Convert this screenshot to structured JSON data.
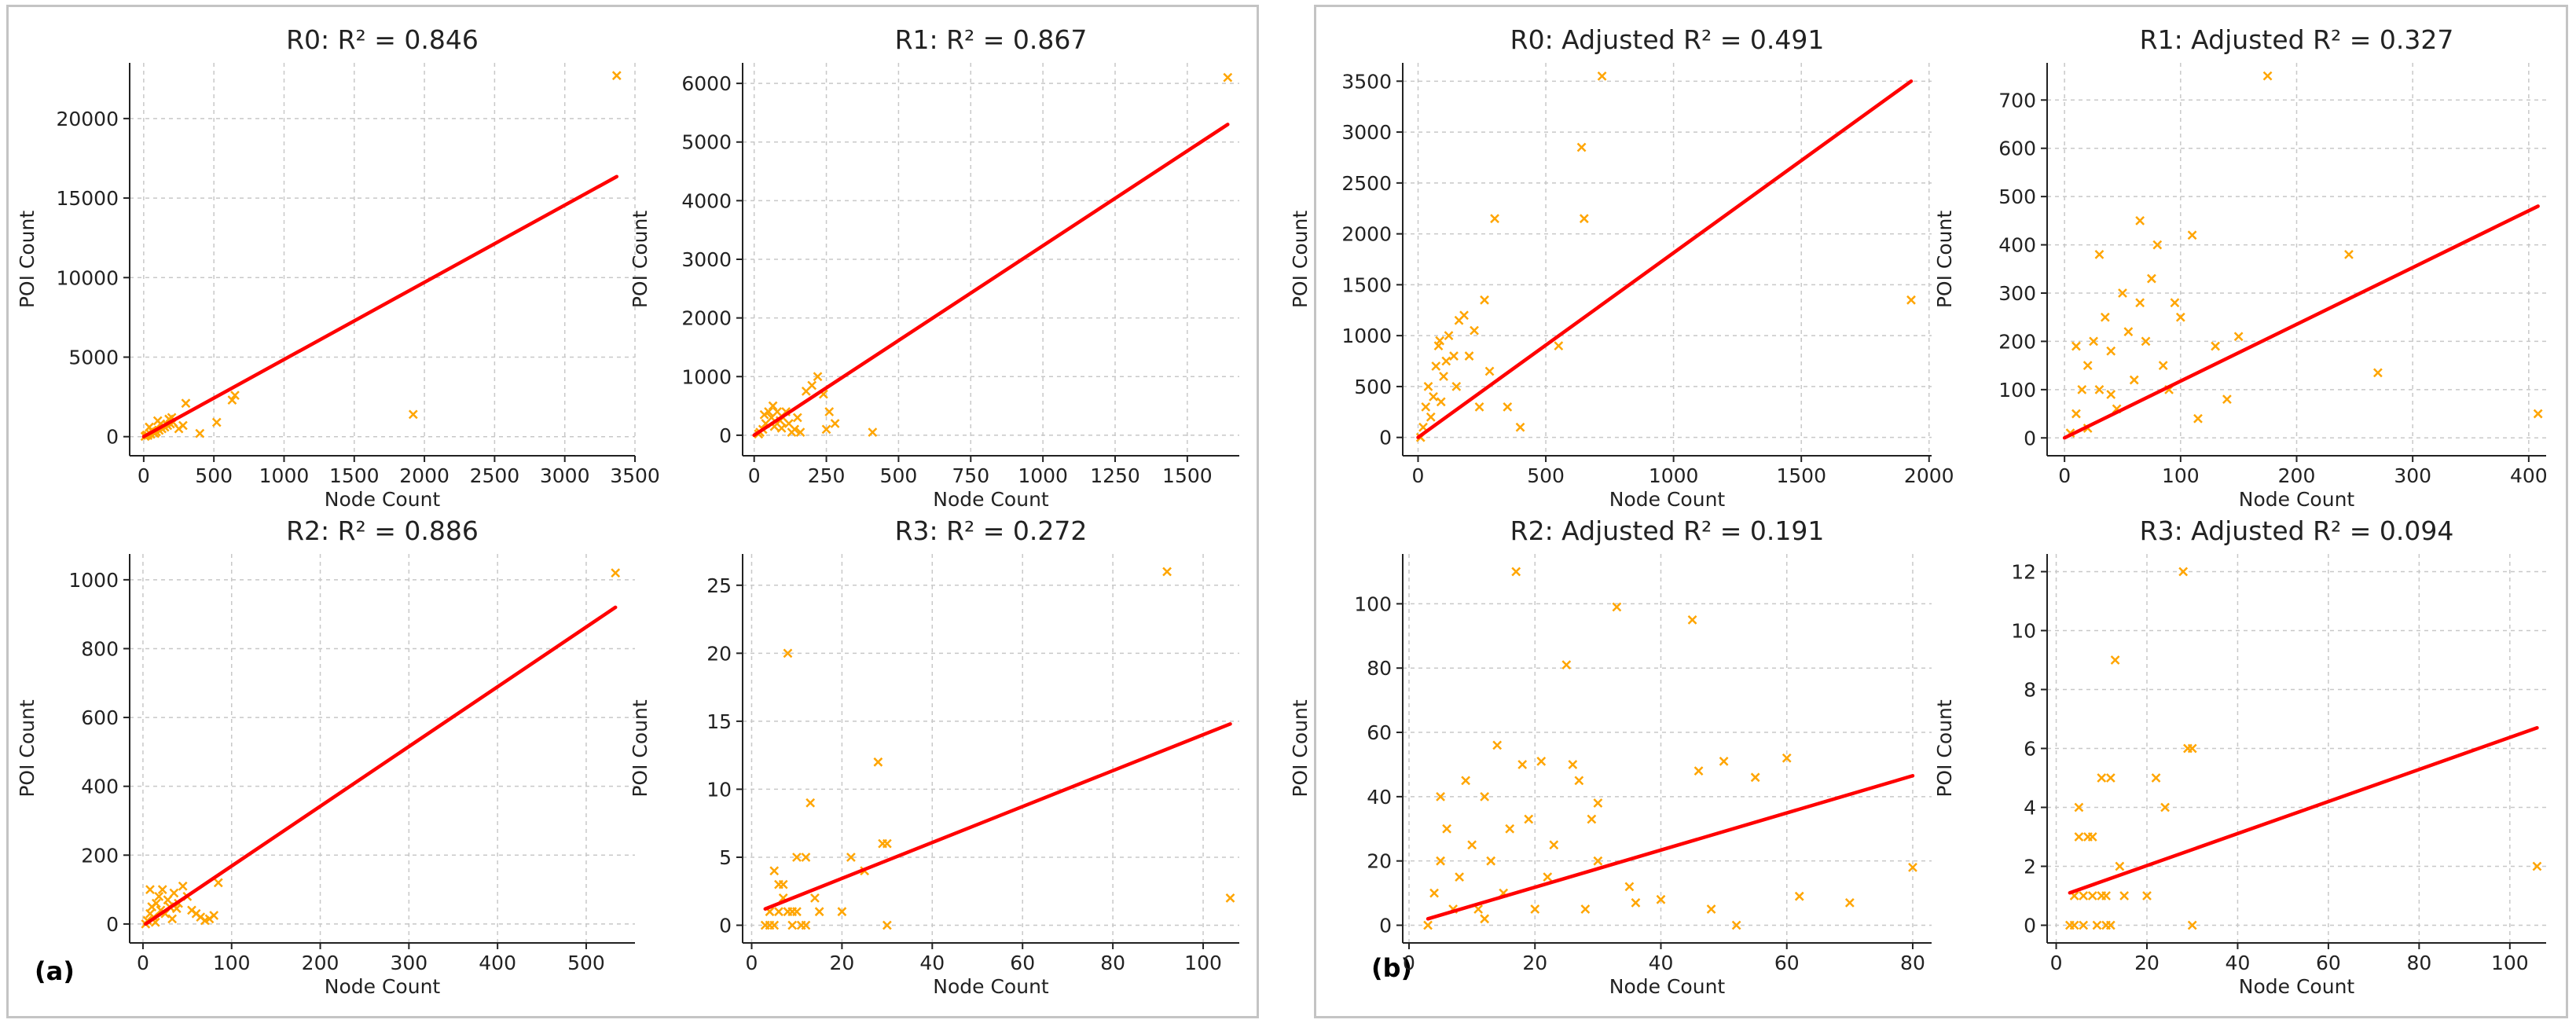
{
  "panels": [
    {
      "label": "(a)"
    },
    {
      "label": "(b)"
    }
  ],
  "colors": {
    "scatter": "#FFA500",
    "fit": "#FF0000",
    "grid": "#c8c8c8",
    "frame": "#c4c4c4"
  },
  "chart_data": [
    {
      "type": "scatter",
      "title": "R0: R² = 0.846",
      "xlabel": "Node Count",
      "ylabel": "POI Count",
      "xlim": [
        -100,
        3500
      ],
      "ylim": [
        -1200,
        23500
      ],
      "xticks": [
        0,
        500,
        1000,
        1500,
        2000,
        2500,
        3000,
        3500
      ],
      "yticks": [
        0,
        5000,
        10000,
        15000,
        20000
      ],
      "fit_line": [
        [
          0,
          0
        ],
        [
          3370,
          16350
        ]
      ],
      "points": [
        [
          10,
          20
        ],
        [
          30,
          80
        ],
        [
          50,
          150
        ],
        [
          70,
          250
        ],
        [
          90,
          300
        ],
        [
          110,
          400
        ],
        [
          130,
          500
        ],
        [
          150,
          600
        ],
        [
          170,
          700
        ],
        [
          190,
          800
        ],
        [
          210,
          900
        ],
        [
          60,
          400
        ],
        [
          100,
          1000
        ],
        [
          250,
          500
        ],
        [
          300,
          2100
        ],
        [
          200,
          1200
        ],
        [
          400,
          200
        ],
        [
          520,
          900
        ],
        [
          630,
          2300
        ],
        [
          650,
          2600
        ],
        [
          1920,
          1400
        ],
        [
          3370,
          22700
        ],
        [
          40,
          600
        ],
        [
          80,
          200
        ],
        [
          120,
          800
        ],
        [
          20,
          100
        ],
        [
          180,
          1100
        ],
        [
          280,
          700
        ]
      ]
    },
    {
      "type": "scatter",
      "title": "R1: R² = 0.867",
      "xlabel": "Node Count",
      "ylabel": "POI Count",
      "xlim": [
        -40,
        1680
      ],
      "ylim": [
        -350,
        6350
      ],
      "xticks": [
        0,
        250,
        500,
        750,
        1000,
        1250,
        1500
      ],
      "yticks": [
        0,
        1000,
        2000,
        3000,
        4000,
        5000,
        6000
      ],
      "fit_line": [
        [
          0,
          0
        ],
        [
          1640,
          5300
        ]
      ],
      "points": [
        [
          20,
          50
        ],
        [
          40,
          200
        ],
        [
          60,
          300
        ],
        [
          80,
          400
        ],
        [
          100,
          300
        ],
        [
          120,
          200
        ],
        [
          140,
          100
        ],
        [
          160,
          50
        ],
        [
          30,
          100
        ],
        [
          50,
          400
        ],
        [
          70,
          150
        ],
        [
          90,
          250
        ],
        [
          110,
          400
        ],
        [
          130,
          50
        ],
        [
          220,
          1000
        ],
        [
          240,
          700
        ],
        [
          260,
          400
        ],
        [
          280,
          200
        ],
        [
          250,
          100
        ],
        [
          410,
          50
        ],
        [
          1640,
          6100
        ],
        [
          15,
          20
        ],
        [
          35,
          350
        ],
        [
          65,
          500
        ],
        [
          95,
          120
        ],
        [
          150,
          300
        ],
        [
          180,
          750
        ],
        [
          200,
          850
        ]
      ]
    },
    {
      "type": "scatter",
      "title": "R2: R² = 0.886",
      "xlabel": "Node Count",
      "ylabel": "POI Count",
      "xlim": [
        -15,
        555
      ],
      "ylim": [
        -55,
        1075
      ],
      "xticks": [
        0,
        100,
        200,
        300,
        400,
        500
      ],
      "yticks": [
        0,
        200,
        400,
        600,
        800,
        1000
      ],
      "fit_line": [
        [
          3,
          0
        ],
        [
          533,
          920
        ]
      ],
      "points": [
        [
          3,
          0
        ],
        [
          5,
          10
        ],
        [
          8,
          30
        ],
        [
          10,
          50
        ],
        [
          12,
          20
        ],
        [
          15,
          60
        ],
        [
          18,
          80
        ],
        [
          20,
          40
        ],
        [
          22,
          100
        ],
        [
          25,
          30
        ],
        [
          28,
          70
        ],
        [
          30,
          50
        ],
        [
          35,
          90
        ],
        [
          40,
          60
        ],
        [
          45,
          110
        ],
        [
          50,
          80
        ],
        [
          55,
          40
        ],
        [
          60,
          30
        ],
        [
          65,
          20
        ],
        [
          70,
          10
        ],
        [
          75,
          15
        ],
        [
          80,
          25
        ],
        [
          85,
          120
        ],
        [
          8,
          100
        ],
        [
          14,
          5
        ],
        [
          33,
          15
        ],
        [
          38,
          45
        ],
        [
          533,
          1020
        ]
      ]
    },
    {
      "type": "scatter",
      "title": "R3: R² = 0.272",
      "xlabel": "Node Count",
      "ylabel": "POI Count",
      "xlim": [
        -2,
        108
      ],
      "ylim": [
        -1.3,
        27.3
      ],
      "xticks": [
        0,
        20,
        40,
        60,
        80,
        100
      ],
      "yticks": [
        0,
        5,
        10,
        15,
        20,
        25
      ],
      "fit_line": [
        [
          3,
          1.2
        ],
        [
          106,
          14.8
        ]
      ],
      "points": [
        [
          3,
          0
        ],
        [
          4,
          1
        ],
        [
          5,
          4
        ],
        [
          6,
          3
        ],
        [
          7,
          2
        ],
        [
          8,
          1
        ],
        [
          9,
          0
        ],
        [
          10,
          5
        ],
        [
          5,
          0
        ],
        [
          6,
          1
        ],
        [
          7,
          3
        ],
        [
          8,
          20
        ],
        [
          10,
          1
        ],
        [
          11,
          0
        ],
        [
          12,
          5
        ],
        [
          13,
          9
        ],
        [
          14,
          2
        ],
        [
          15,
          1
        ],
        [
          20,
          1
        ],
        [
          22,
          5
        ],
        [
          25,
          4
        ],
        [
          28,
          12
        ],
        [
          29,
          6
        ],
        [
          30,
          6
        ],
        [
          30,
          0
        ],
        [
          92,
          26
        ],
        [
          106,
          2
        ],
        [
          4,
          0
        ],
        [
          9,
          1
        ],
        [
          12,
          0
        ]
      ]
    },
    {
      "type": "scatter",
      "title": "R0: Adjusted R² = 0.491",
      "xlabel": "Node Count",
      "ylabel": "POI Count",
      "xlim": [
        -60,
        2010
      ],
      "ylim": [
        -180,
        3680
      ],
      "xticks": [
        0,
        500,
        1000,
        1500,
        2000
      ],
      "yticks": [
        0,
        500,
        1000,
        1500,
        2000,
        2500,
        3000,
        3500
      ],
      "fit_line": [
        [
          0,
          0
        ],
        [
          1930,
          3500
        ]
      ],
      "points": [
        [
          10,
          0
        ],
        [
          20,
          100
        ],
        [
          30,
          300
        ],
        [
          40,
          500
        ],
        [
          50,
          200
        ],
        [
          60,
          400
        ],
        [
          70,
          700
        ],
        [
          80,
          900
        ],
        [
          90,
          350
        ],
        [
          100,
          600
        ],
        [
          120,
          1000
        ],
        [
          140,
          800
        ],
        [
          150,
          500
        ],
        [
          160,
          1150
        ],
        [
          180,
          1200
        ],
        [
          200,
          800
        ],
        [
          220,
          1050
        ],
        [
          240,
          300
        ],
        [
          260,
          1350
        ],
        [
          280,
          650
        ],
        [
          300,
          2150
        ],
        [
          350,
          300
        ],
        [
          400,
          100
        ],
        [
          550,
          900
        ],
        [
          640,
          2850
        ],
        [
          650,
          2150
        ],
        [
          720,
          3550
        ],
        [
          1930,
          1350
        ],
        [
          110,
          750
        ],
        [
          85,
          950
        ]
      ]
    },
    {
      "type": "scatter",
      "title": "R1: Adjusted R² = 0.327",
      "xlabel": "Node Count",
      "ylabel": "POI Count",
      "xlim": [
        -15,
        415
      ],
      "ylim": [
        -37,
        777
      ],
      "xticks": [
        0,
        100,
        200,
        300,
        400
      ],
      "yticks": [
        0,
        100,
        200,
        300,
        400,
        500,
        600,
        700
      ],
      "fit_line": [
        [
          0,
          0
        ],
        [
          408,
          480
        ]
      ],
      "points": [
        [
          5,
          10
        ],
        [
          10,
          50
        ],
        [
          15,
          100
        ],
        [
          20,
          150
        ],
        [
          25,
          200
        ],
        [
          30,
          100
        ],
        [
          35,
          250
        ],
        [
          40,
          180
        ],
        [
          45,
          60
        ],
        [
          50,
          300
        ],
        [
          55,
          220
        ],
        [
          60,
          120
        ],
        [
          65,
          280
        ],
        [
          70,
          200
        ],
        [
          75,
          330
        ],
        [
          80,
          400
        ],
        [
          85,
          150
        ],
        [
          90,
          100
        ],
        [
          95,
          280
        ],
        [
          100,
          250
        ],
        [
          110,
          420
        ],
        [
          115,
          40
        ],
        [
          130,
          190
        ],
        [
          140,
          80
        ],
        [
          150,
          210
        ],
        [
          30,
          380
        ],
        [
          65,
          450
        ],
        [
          175,
          750
        ],
        [
          245,
          380
        ],
        [
          270,
          135
        ],
        [
          408,
          50
        ],
        [
          10,
          190
        ],
        [
          20,
          20
        ],
        [
          40,
          90
        ]
      ]
    },
    {
      "type": "scatter",
      "title": "R2: Adjusted R² = 0.191",
      "xlabel": "Node Count",
      "ylabel": "POI Count",
      "xlim": [
        -1,
        83
      ],
      "ylim": [
        -5.5,
        115.5
      ],
      "xticks": [
        0,
        20,
        40,
        60,
        80
      ],
      "yticks": [
        0,
        20,
        40,
        60,
        80,
        100
      ],
      "fit_line": [
        [
          3,
          2
        ],
        [
          80,
          46.5
        ]
      ],
      "points": [
        [
          3,
          0
        ],
        [
          4,
          10
        ],
        [
          5,
          20
        ],
        [
          6,
          30
        ],
        [
          7,
          5
        ],
        [
          8,
          15
        ],
        [
          9,
          45
        ],
        [
          10,
          25
        ],
        [
          11,
          5
        ],
        [
          12,
          40
        ],
        [
          13,
          20
        ],
        [
          14,
          56
        ],
        [
          15,
          10
        ],
        [
          16,
          30
        ],
        [
          17,
          110
        ],
        [
          18,
          50
        ],
        [
          19,
          33
        ],
        [
          20,
          5
        ],
        [
          21,
          51
        ],
        [
          22,
          15
        ],
        [
          23,
          25
        ],
        [
          25,
          81
        ],
        [
          26,
          50
        ],
        [
          27,
          45
        ],
        [
          28,
          5
        ],
        [
          29,
          33
        ],
        [
          30,
          20
        ],
        [
          33,
          99
        ],
        [
          35,
          12
        ],
        [
          40,
          8
        ],
        [
          45,
          95
        ],
        [
          46,
          48
        ],
        [
          48,
          5
        ],
        [
          50,
          51
        ],
        [
          52,
          0
        ],
        [
          55,
          46
        ],
        [
          60,
          52
        ],
        [
          62,
          9
        ],
        [
          70,
          7
        ],
        [
          80,
          18
        ],
        [
          5,
          40
        ],
        [
          12,
          2
        ],
        [
          30,
          38
        ],
        [
          36,
          7
        ]
      ]
    },
    {
      "type": "scatter",
      "title": "R3: Adjusted R² = 0.094",
      "xlabel": "Node Count",
      "ylabel": "POI Count",
      "xlim": [
        -2,
        108
      ],
      "ylim": [
        -0.6,
        12.6
      ],
      "xticks": [
        0,
        20,
        40,
        60,
        80,
        100
      ],
      "yticks": [
        0,
        2,
        4,
        6,
        8,
        10,
        12
      ],
      "fit_line": [
        [
          3,
          1.1
        ],
        [
          106,
          6.7
        ]
      ],
      "points": [
        [
          3,
          0
        ],
        [
          4,
          1
        ],
        [
          5,
          4
        ],
        [
          5,
          3
        ],
        [
          6,
          1
        ],
        [
          7,
          3
        ],
        [
          8,
          1
        ],
        [
          9,
          0
        ],
        [
          10,
          5
        ],
        [
          10,
          1
        ],
        [
          11,
          0
        ],
        [
          12,
          5
        ],
        [
          13,
          9
        ],
        [
          14,
          2
        ],
        [
          15,
          1
        ],
        [
          20,
          1
        ],
        [
          22,
          5
        ],
        [
          24,
          4
        ],
        [
          28,
          12
        ],
        [
          29,
          6
        ],
        [
          30,
          6
        ],
        [
          30,
          0
        ],
        [
          106,
          2
        ],
        [
          4,
          0
        ],
        [
          6,
          0
        ],
        [
          8,
          3
        ],
        [
          11,
          1
        ],
        [
          12,
          0
        ]
      ]
    }
  ]
}
